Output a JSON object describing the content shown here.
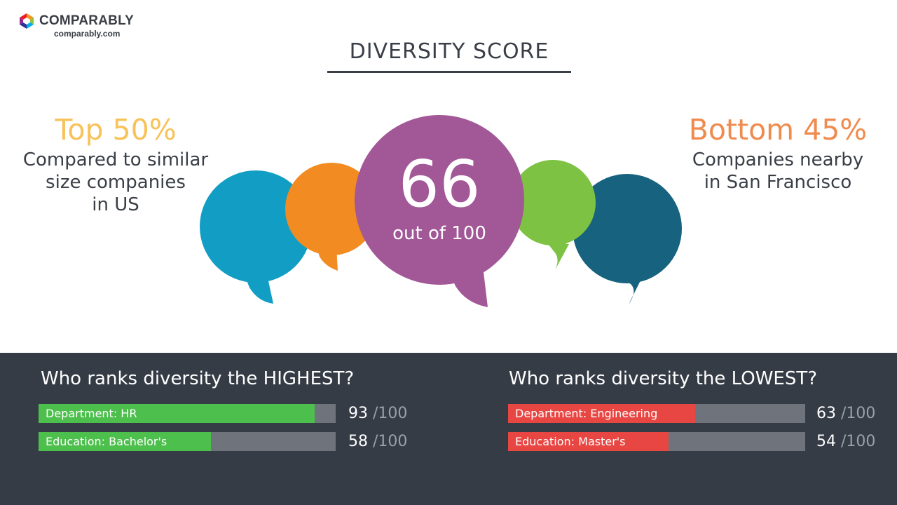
{
  "brand": {
    "name": "COMPARABLY",
    "url": "comparably.com"
  },
  "title": "DIVERSITY SCORE",
  "left_stat": {
    "headline": "Top 50%",
    "lines": [
      "Compared to similar",
      "size companies",
      "in US"
    ]
  },
  "right_stat": {
    "headline": "Bottom 45%",
    "lines": [
      "Companies nearby",
      "in San Francisco"
    ]
  },
  "score": {
    "value": "66",
    "caption": "out of 100"
  },
  "highest": {
    "title": "Who ranks diversity the HIGHEST?",
    "items": [
      {
        "label": "Department: HR",
        "score": "93",
        "max": "/100",
        "value": 93
      },
      {
        "label": "Education: Bachelor's",
        "score": "58",
        "max": "/100",
        "value": 58
      }
    ]
  },
  "lowest": {
    "title": "Who ranks diversity the LOWEST?",
    "items": [
      {
        "label": "Department: Engineering",
        "score": "63",
        "max": "/100",
        "value": 63
      },
      {
        "label": "Education: Master's",
        "score": "54",
        "max": "/100",
        "value": 54
      }
    ]
  },
  "colors": {
    "top_stat": "#f7c25a",
    "bottom_stat": "#f08b4f",
    "high_bar": "#4cbf4c",
    "low_bar": "#e84642",
    "bubble_main": "#a25796",
    "bubble_blue": "#129ec4",
    "bubble_orange": "#f28c22",
    "bubble_green": "#7dc242",
    "bubble_teal": "#17627e"
  }
}
